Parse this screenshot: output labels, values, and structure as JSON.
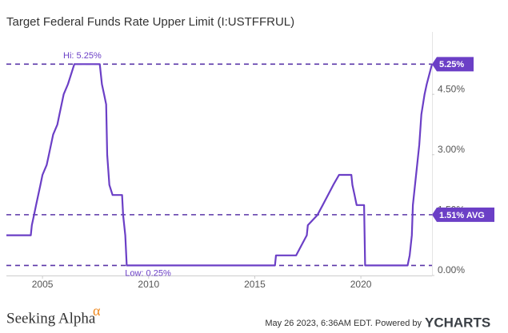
{
  "chart_data": {
    "type": "line",
    "title": "Target Federal Funds Rate Upper Limit (I:USTFFRUL)",
    "x": [
      2003.3,
      2004.45,
      2004.5,
      2004.6,
      2004.7,
      2004.9,
      2005.0,
      2005.2,
      2005.3,
      2005.5,
      2005.7,
      2005.8,
      2006.0,
      2006.2,
      2006.5,
      2007.7,
      2007.8,
      2007.9,
      2008.0,
      2008.05,
      2008.15,
      2008.3,
      2008.75,
      2008.8,
      2008.9,
      2008.97,
      2015.95,
      2016.0,
      2016.95,
      2017.2,
      2017.45,
      2017.5,
      2017.95,
      2018.2,
      2018.45,
      2018.7,
      2018.97,
      2019.55,
      2019.6,
      2019.7,
      2019.8,
      2020.15,
      2020.2,
      2022.2,
      2022.3,
      2022.4,
      2022.45,
      2022.6,
      2022.75,
      2022.85,
      2023.0,
      2023.1,
      2023.35
    ],
    "values": [
      1.0,
      1.0,
      1.25,
      1.5,
      1.75,
      2.25,
      2.5,
      2.75,
      3.0,
      3.5,
      3.75,
      4.0,
      4.5,
      4.75,
      5.25,
      5.25,
      4.75,
      4.5,
      4.25,
      3.0,
      2.25,
      2.0,
      2.0,
      1.5,
      1.0,
      0.25,
      0.25,
      0.5,
      0.5,
      0.75,
      1.0,
      1.25,
      1.5,
      1.75,
      2.0,
      2.25,
      2.5,
      2.5,
      2.25,
      2.0,
      1.75,
      1.75,
      0.25,
      0.25,
      0.5,
      1.0,
      1.75,
      2.5,
      3.25,
      4.0,
      4.5,
      4.75,
      5.25
    ],
    "color": "#6b3fc6",
    "xlim": [
      2003.3,
      2023.35
    ],
    "xticks": [
      2005,
      2010,
      2015,
      2020
    ],
    "ylim": [
      0,
      6.05
    ],
    "yticks": [
      {
        "value": 0,
        "label": "0.00%"
      },
      {
        "value": 1.5,
        "label": "1.50%"
      },
      {
        "value": 3,
        "label": "3.00%"
      },
      {
        "value": 4.5,
        "label": "4.50%"
      }
    ],
    "hi": {
      "value": 5.25,
      "label": "Hi: 5.25%",
      "tag": "5.25%"
    },
    "avg": {
      "value": 1.51,
      "tag": "1.51% AVG"
    },
    "low": {
      "value": 0.25,
      "label": "Low: 0.25%"
    }
  },
  "footer": {
    "brand": "Seeking Alpha",
    "brand_mark": "α",
    "stamp": "May 26 2023, 6:36AM EDT.  Powered by",
    "provider": "YCHARTS"
  }
}
